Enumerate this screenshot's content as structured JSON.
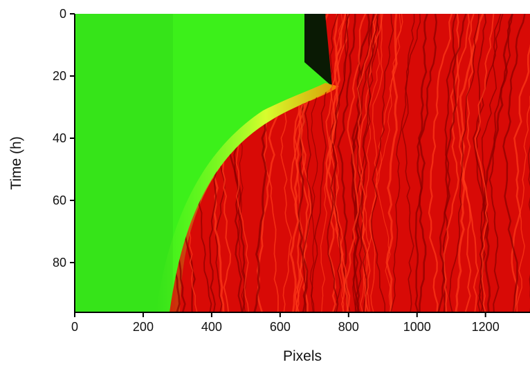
{
  "chart_data": {
    "type": "image",
    "xlabel": "Pixels",
    "ylabel": "Time (h)",
    "xlim": [
      0,
      1330
    ],
    "ylim": [
      0,
      96
    ],
    "y_inverted": true,
    "xticks": [
      0,
      200,
      400,
      600,
      800,
      1000,
      1200
    ],
    "yticks": [
      0,
      20,
      40,
      60,
      80
    ]
  }
}
